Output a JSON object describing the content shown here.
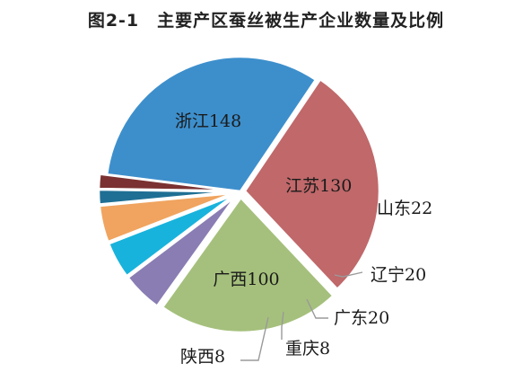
{
  "chart_data": {
    "type": "pie",
    "title": "图2-1　主要产区蚕丝被生产企业数量及比例",
    "slices": [
      {
        "name": "浙江",
        "value": 148,
        "label": "浙江148",
        "color": "#3d8fcc"
      },
      {
        "name": "江苏",
        "value": 130,
        "label": "江苏130",
        "color": "#c0686a"
      },
      {
        "name": "广西",
        "value": 100,
        "label": "广西100",
        "color": "#a5c07c"
      },
      {
        "name": "山东",
        "value": 22,
        "label": "山东22",
        "color": "#8a7db3"
      },
      {
        "name": "辽宁",
        "value": 20,
        "label": "辽宁20",
        "color": "#18b3dc"
      },
      {
        "name": "广东",
        "value": 20,
        "label": "广东20",
        "color": "#f0a45f"
      },
      {
        "name": "重庆",
        "value": 8,
        "label": "重庆8",
        "color": "#1f6f94"
      },
      {
        "name": "陕西",
        "value": 8,
        "label": "陕西8",
        "color": "#7b3131"
      }
    ]
  }
}
